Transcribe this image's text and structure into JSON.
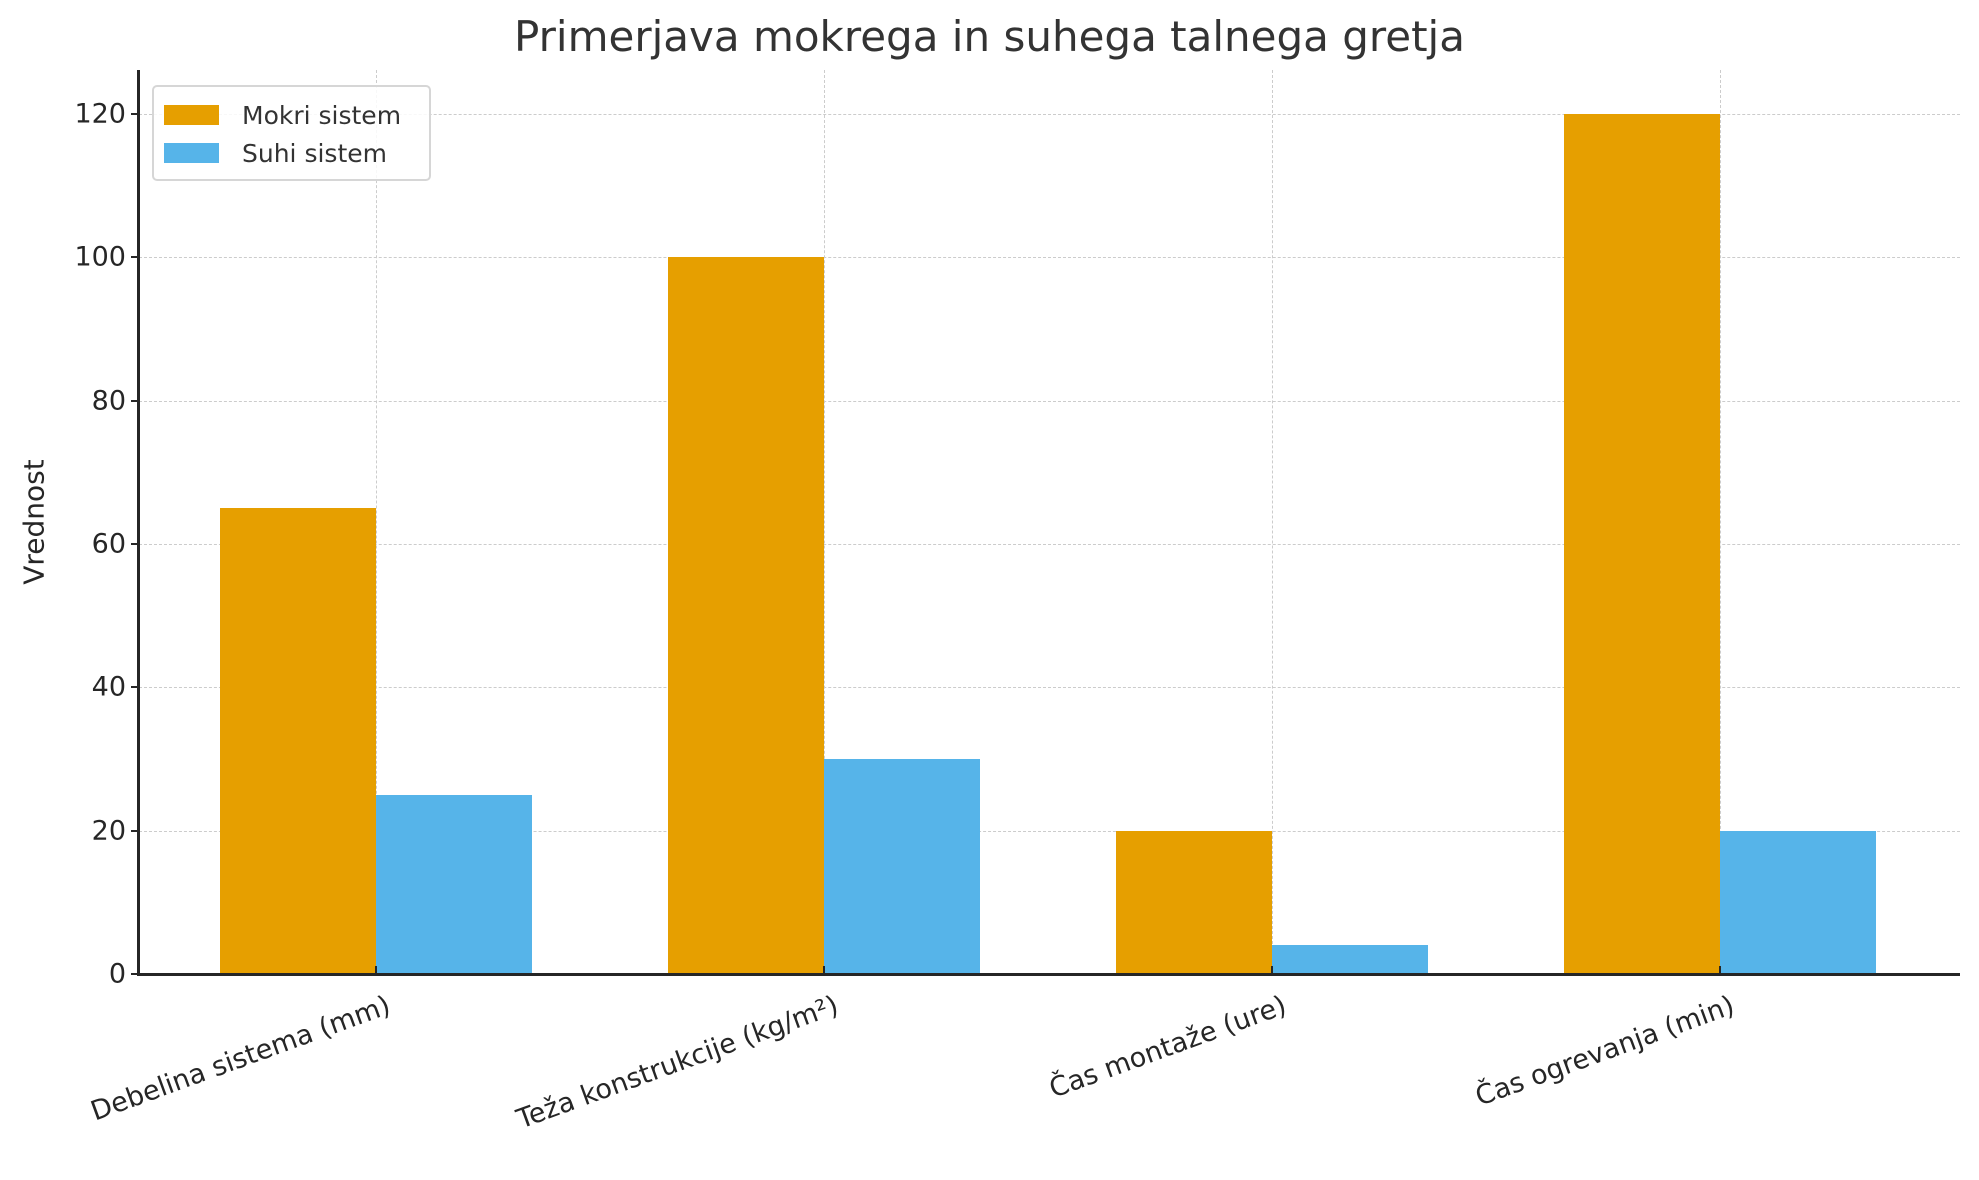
{
  "chart_data": {
    "type": "bar",
    "title": "Primerjava mokrega in suhega talnega gretja",
    "xlabel": "",
    "ylabel": "Vrednost",
    "categories": [
      "Debelina sistema (mm)",
      "Teža konstrukcije (kg/m²)",
      "Čas montaže (ure)",
      "Čas ogrevanja (min)"
    ],
    "series": [
      {
        "name": "Mokri sistem",
        "color": "#E69F00",
        "values": [
          65,
          100,
          20,
          120
        ]
      },
      {
        "name": "Suhi sistem",
        "color": "#56B4E9",
        "values": [
          25,
          30,
          4,
          20
        ]
      }
    ],
    "ylim": [
      0,
      126
    ],
    "yticks": [
      0,
      20,
      40,
      60,
      80,
      100,
      120
    ],
    "grid": true,
    "grid_style": "dashed",
    "legend_position": "upper left",
    "x_tick_rotation": 20
  },
  "title": "Primerjava mokrega in suhega talnega gretja",
  "axes": {
    "ylabel": "Vrednost",
    "yticks": [
      "0",
      "20",
      "40",
      "60",
      "80",
      "100",
      "120"
    ],
    "xticks": [
      "Debelina sistema (mm)",
      "Teža konstrukcije (kg/m²)",
      "Čas montaže (ure)",
      "Čas ogrevanja (min)"
    ]
  },
  "legend": {
    "items": [
      {
        "label": "Mokri sistem",
        "color": "#E69F00"
      },
      {
        "label": "Suhi sistem",
        "color": "#56B4E9"
      }
    ]
  }
}
